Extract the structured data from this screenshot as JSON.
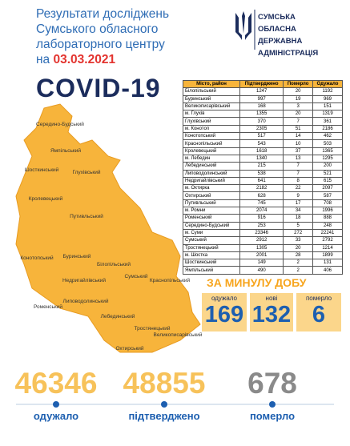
{
  "header": {
    "title_lines": [
      "Результати досліджень",
      "Сумського обласного",
      "лабораторного центру"
    ],
    "date_prefix": "на",
    "date": "03.03.2021",
    "headline": "COVID-19"
  },
  "org": {
    "lines": [
      "Сумська",
      "обласна",
      "державна",
      "адміністрація"
    ]
  },
  "table": {
    "columns": [
      "Місто, район",
      "Підтверджено",
      "Померло",
      "Одужало"
    ],
    "rows": [
      [
        "Білопільський",
        "1247",
        "20",
        "1192"
      ],
      [
        "Буринський",
        "997",
        "19",
        "969"
      ],
      [
        "Великописарівський",
        "168",
        "3",
        "151"
      ],
      [
        "м. Глухів",
        "1355",
        "20",
        "1319"
      ],
      [
        "Глухівський",
        "370",
        "7",
        "361"
      ],
      [
        "м. Конотоп",
        "2305",
        "51",
        "2186"
      ],
      [
        "Конотопський",
        "517",
        "14",
        "462"
      ],
      [
        "Краснопільський",
        "543",
        "10",
        "503"
      ],
      [
        "Кролевецький",
        "1618",
        "37",
        "1365"
      ],
      [
        "м. Лебедин",
        "1340",
        "13",
        "1295"
      ],
      [
        "Лебединський",
        "215",
        "7",
        "200"
      ],
      [
        "Липоводолинський",
        "538",
        "7",
        "521"
      ],
      [
        "Недригайлівський",
        "641",
        "8",
        "615"
      ],
      [
        "м. Охтирка",
        "2182",
        "22",
        "2097"
      ],
      [
        "Охтирський",
        "628",
        "9",
        "587"
      ],
      [
        "Путивльський",
        "745",
        "17",
        "708"
      ],
      [
        "м. Ромни",
        "2074",
        "34",
        "1996"
      ],
      [
        "Роменський",
        "916",
        "18",
        "888"
      ],
      [
        "Середино-Будський",
        "253",
        "5",
        "248"
      ],
      [
        "м. Суми",
        "23346",
        "272",
        "22241"
      ],
      [
        "Сумський",
        "2912",
        "33",
        "2792"
      ],
      [
        "Тростянецький",
        "1305",
        "20",
        "1214"
      ],
      [
        "м. Шостка",
        "2001",
        "28",
        "1899"
      ],
      [
        "Шосткинський",
        "149",
        "2",
        "131"
      ],
      [
        "Ямпільський",
        "490",
        "2",
        "406"
      ]
    ]
  },
  "daily": {
    "title": "ЗА МИНУЛУ ДОБУ",
    "boxes": [
      {
        "label": "одужало",
        "value": "169"
      },
      {
        "label": "нові",
        "value": "132"
      },
      {
        "label": "померло",
        "value": "6"
      }
    ]
  },
  "totals": [
    {
      "value": "46346",
      "label": "одужало"
    },
    {
      "value": "48855",
      "label": "підтверджено"
    },
    {
      "value": "678",
      "label": "померло"
    }
  ],
  "map": {
    "regions": [
      "Середино-Будський",
      "Ямпільський",
      "Шосткинський",
      "Глухівський",
      "Кролевецький",
      "Путивльський",
      "Конотопський",
      "Буринський",
      "Білопільський",
      "Сумський",
      "Недригайлівський",
      "Роменський",
      "Липоводолинський",
      "Лебединський",
      "Краснопільський",
      "Тростянецький",
      "Охтирський",
      "Великописарівський"
    ]
  }
}
